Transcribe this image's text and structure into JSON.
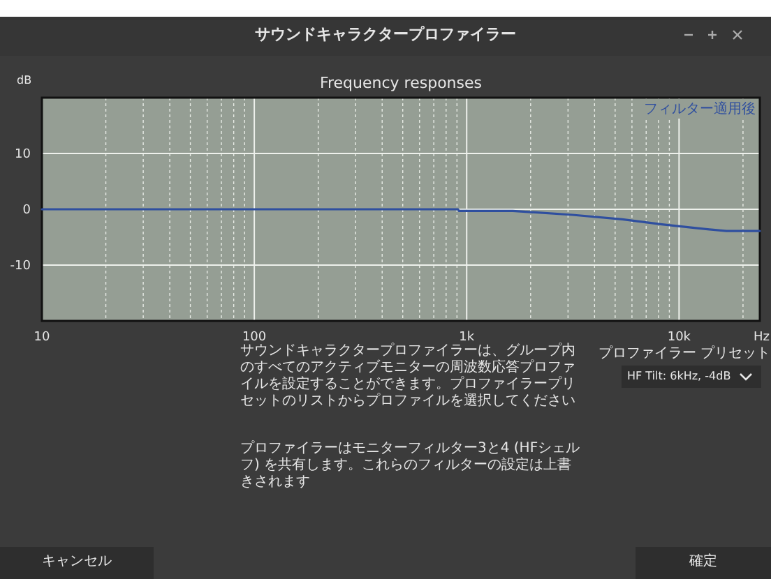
{
  "chart_data": {
    "type": "line",
    "title": "Frequency responses",
    "xlabel": "Hz",
    "ylabel": "dB",
    "x": [
      10,
      100,
      910,
      920,
      1650,
      3150,
      5400,
      8300,
      12200,
      16700,
      24000
    ],
    "series": [
      {
        "name": "フィルター適用後",
        "color": "#2f4f9f",
        "values": [
          0,
          0,
          0,
          -0.3,
          -0.3,
          -1.0,
          -1.8,
          -2.7,
          -3.4,
          -3.9,
          -3.9
        ]
      }
    ],
    "xlim": [
      10,
      24000
    ],
    "ylim": [
      -20,
      20
    ],
    "xticks": [
      10,
      100,
      {
        "value": 1000,
        "label": "1k"
      },
      {
        "value": 10000,
        "label": "10k"
      }
    ],
    "yticks": [
      10,
      0,
      -10
    ],
    "log": "x",
    "grid": true,
    "legend": "top right",
    "annotations": [
      "サウンドキャラクタープロファイラー",
      "サウンドキャラクタープロファイラーは、グループ内のすべてのアクティブモニターの周波数応答プロファイルを設定することができます。プロファイラープリセットのリストからプロファイルを選択してください",
      "プロファイラーはモニターフィルター3と4 (HFシェルフ) を共有します。これらのフィルターの設定は上書きされます",
      "プロファイラー プリセット",
      "HF Tilt: 6kHz, -4dB",
      "キャンセル",
      "確定"
    ]
  }
}
